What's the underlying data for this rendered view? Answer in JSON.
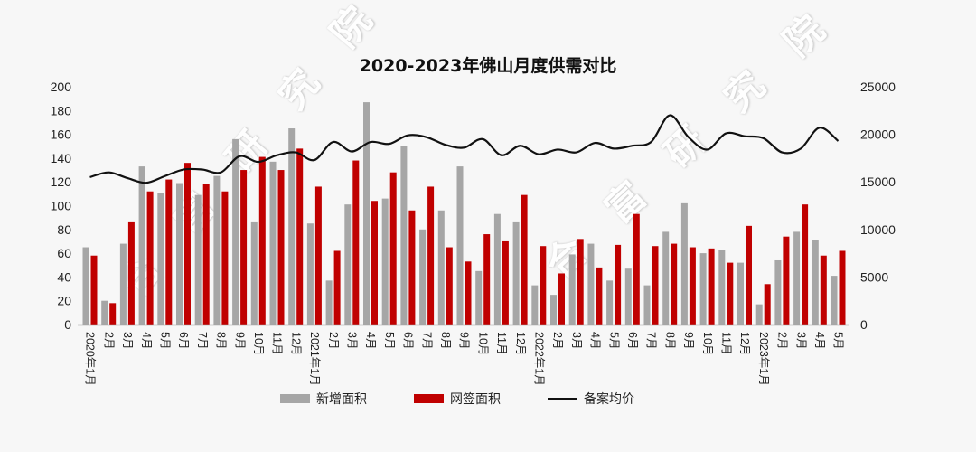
{
  "chart_data": {
    "type": "bar",
    "title": "2020-2023年佛山月度供需对比",
    "xlabel": "",
    "ylabel": "",
    "ylim": [
      0,
      200
    ],
    "y2lim": [
      0,
      25000
    ],
    "y_ticks": [
      "0",
      "20",
      "40",
      "60",
      "80",
      "100",
      "120",
      "140",
      "160",
      "180",
      "200"
    ],
    "y2_ticks": [
      "0",
      "5000",
      "10000",
      "15000",
      "20000",
      "25000"
    ],
    "grid": false,
    "legend_position": "bottom",
    "categories": [
      "2020年1月",
      "2月",
      "3月",
      "4月",
      "5月",
      "6月",
      "7月",
      "8月",
      "9月",
      "10月",
      "11月",
      "12月",
      "2021年1月",
      "2月",
      "3月",
      "4月",
      "5月",
      "6月",
      "7月",
      "8月",
      "9月",
      "10月",
      "11月",
      "12月",
      "2022年1月",
      "2月",
      "3月",
      "4月",
      "5月",
      "6月",
      "7月",
      "8月",
      "9月",
      "10月",
      "11月",
      "12月",
      "2023年1月",
      "2月",
      "3月",
      "4月",
      "5月"
    ],
    "series": [
      {
        "name": "新增面积",
        "type": "bar",
        "axis": "left",
        "color": "#a6a6a6",
        "values": [
          65,
          20,
          68,
          133,
          111,
          119,
          109,
          125,
          156,
          86,
          137,
          165,
          85,
          37,
          101,
          187,
          106,
          150,
          80,
          96,
          133,
          45,
          93,
          86,
          33,
          25,
          59,
          68,
          37,
          47,
          33,
          78,
          102,
          60,
          63,
          52,
          17,
          54,
          78,
          71,
          41
        ]
      },
      {
        "name": "网签面积",
        "type": "bar",
        "axis": "left",
        "color": "#c00000",
        "values": [
          58,
          18,
          86,
          112,
          122,
          136,
          118,
          112,
          130,
          141,
          130,
          148,
          116,
          62,
          138,
          104,
          128,
          96,
          116,
          65,
          53,
          76,
          70,
          109,
          66,
          43,
          72,
          48,
          67,
          93,
          66,
          68,
          65,
          64,
          52,
          83,
          34,
          74,
          101,
          58,
          62
        ]
      },
      {
        "name": "备案均价",
        "type": "line",
        "axis": "right",
        "color": "#111111",
        "values": [
          15500,
          16000,
          15400,
          14900,
          15600,
          16300,
          16300,
          16000,
          17700,
          17100,
          17800,
          18100,
          17300,
          19200,
          18200,
          19200,
          19000,
          19900,
          19700,
          18900,
          18600,
          19500,
          17800,
          18800,
          17900,
          18400,
          18100,
          19100,
          18500,
          18800,
          19200,
          22000,
          19700,
          18400,
          20100,
          19800,
          19600,
          18100,
          18500,
          20700,
          19300
        ]
      }
    ]
  },
  "watermark": "合富研究院",
  "legend": [
    {
      "label": "新增面积",
      "kind": "bar",
      "color": "#a6a6a6"
    },
    {
      "label": "网签面积",
      "kind": "bar",
      "color": "#c00000"
    },
    {
      "label": "备案均价",
      "kind": "line",
      "color": "#111111"
    }
  ]
}
